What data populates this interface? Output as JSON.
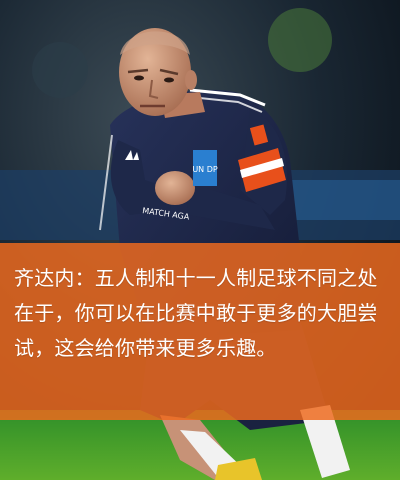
{
  "caption": {
    "text": "齐达内：五人制和十一人制足球不同之处在于，你可以在比赛中敢于更多的大胆尝试，这会给你带来更多乐趣。"
  },
  "photo": {
    "subject": "Soccer player in dark navy jersey with UNDP logo and captain armband, running on a pitch at night",
    "jersey_logo_text": "UNDP",
    "jersey_sponsor_text": "MATCH AGAINST POVERTY",
    "colors": {
      "background_night": "#0b1420",
      "pitch_green": "#2f8f2a",
      "jersey_navy": "#1b2442",
      "undp_blue": "#2a7fd0",
      "armband_orange": "#e8501b",
      "caption_orange": "#ee6a1e"
    }
  }
}
